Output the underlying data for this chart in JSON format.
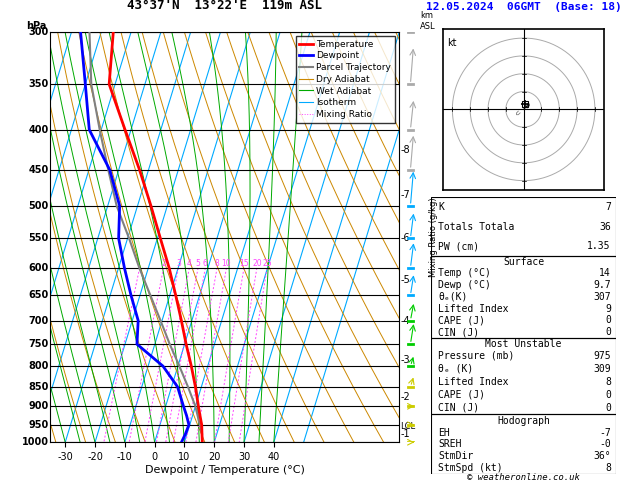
{
  "title_left": "43°37'N  13°22'E  119m ASL",
  "title_right": "12.05.2024  06GMT  (Base: 18)",
  "xlabel": "Dewpoint / Temperature (°C)",
  "ylabel_left": "hPa",
  "copyright": "© weatheronline.co.uk",
  "pressure_major": [
    300,
    350,
    400,
    450,
    500,
    550,
    600,
    650,
    700,
    750,
    800,
    850,
    900,
    950,
    1000
  ],
  "xlim_T": [
    -35,
    40
  ],
  "temp_color": "#ff0000",
  "dewpoint_color": "#0000ff",
  "parcel_color": "#808080",
  "dry_adiabat_color": "#cc8800",
  "wet_adiabat_color": "#00aa00",
  "isotherm_color": "#00aaff",
  "mixing_ratio_color": "#ff44ff",
  "km_ticks": [
    1,
    2,
    3,
    4,
    5,
    6,
    7,
    8
  ],
  "km_pressures": [
    976,
    875,
    785,
    700,
    622,
    550,
    485,
    425
  ],
  "lcl_pressure": 955,
  "mixing_ratio_vals": [
    1,
    2,
    3,
    4,
    5,
    6,
    8,
    10,
    15,
    20,
    25
  ],
  "mixing_ratio_label_vals": [
    2,
    3,
    4,
    5,
    6,
    8,
    10,
    15,
    20,
    25
  ],
  "temperature_data": {
    "pressure": [
      1000,
      975,
      950,
      925,
      900,
      850,
      800,
      750,
      700,
      650,
      600,
      550,
      500,
      450,
      400,
      350,
      300
    ],
    "temp": [
      16.0,
      15.0,
      14.0,
      12.5,
      11.0,
      8.0,
      4.5,
      0.5,
      -3.5,
      -8.0,
      -13.0,
      -19.0,
      -25.5,
      -33.0,
      -42.0,
      -52.0,
      -56.0
    ]
  },
  "dewpoint_data": {
    "pressure": [
      1000,
      975,
      950,
      925,
      900,
      850,
      800,
      750,
      700,
      650,
      600,
      550,
      500,
      450,
      400,
      350,
      300
    ],
    "dewp": [
      9.0,
      9.5,
      9.7,
      8.0,
      6.0,
      2.0,
      -5.0,
      -16.0,
      -18.0,
      -23.0,
      -28.0,
      -33.0,
      -36.0,
      -43.0,
      -54.0,
      -60.0,
      -67.0
    ]
  },
  "parcel_data": {
    "pressure": [
      975,
      960,
      900,
      850,
      800,
      750,
      700,
      650,
      600,
      550,
      500,
      450,
      400,
      350,
      300
    ],
    "temp": [
      15.0,
      14.0,
      10.0,
      5.5,
      0.5,
      -5.0,
      -10.5,
      -16.5,
      -23.0,
      -29.5,
      -37.0,
      -43.5,
      -50.5,
      -58.0,
      -64.0
    ]
  },
  "stats": {
    "K": 7,
    "Totals_Totals": 36,
    "PW_cm": 1.35,
    "Surface_Temp": 14,
    "Surface_Dewp": 9.7,
    "Surface_theta_e": 307,
    "Surface_Lifted_Index": 9,
    "Surface_CAPE": 0,
    "Surface_CIN": 0,
    "MU_Pressure": 975,
    "MU_theta_e": 309,
    "MU_Lifted_Index": 8,
    "MU_CAPE": 0,
    "MU_CIN": 0,
    "EH": -7,
    "SREH": "-0",
    "StmDir": "36°",
    "StmSpd": 8
  },
  "wind_profile": {
    "pressure": [
      1000,
      950,
      900,
      850,
      800,
      750,
      700,
      650,
      600,
      550,
      500,
      450,
      400,
      350,
      300
    ],
    "color": [
      "#cccc00",
      "#cccc00",
      "#cccc00",
      "#cccc00",
      "#00cc00",
      "#00cc00",
      "#00cc00",
      "#00aaff",
      "#00aaff",
      "#00aaff",
      "#00aaff",
      "#aaaaaa",
      "#aaaaaa",
      "#aaaaaa",
      "#aaaaaa"
    ],
    "u": [
      2,
      3,
      4,
      5,
      5,
      5,
      6,
      5,
      4,
      4,
      4,
      4,
      5,
      5,
      5
    ],
    "v": [
      0,
      0,
      0,
      1,
      1,
      2,
      2,
      2,
      2,
      2,
      3,
      3,
      3,
      4,
      5
    ]
  }
}
